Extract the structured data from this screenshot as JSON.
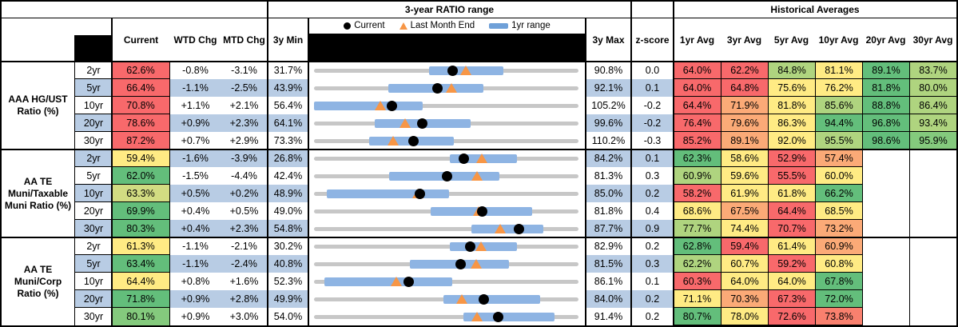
{
  "header": {
    "ratio_range_title": "3-year RATIO range",
    "historical_averages_title": "Historical Averages",
    "col_current": "Current",
    "col_wtd": "WTD Chg",
    "col_mtd": "MTD Chg",
    "col_3y_min": "3y Min",
    "col_3y_max": "3y Max",
    "col_zscore": "z-score",
    "avg_cols": [
      "1yr Avg",
      "3yr Avg",
      "5yr Avg",
      "10yr Avg",
      "20yr Avg",
      "30yr Avg"
    ],
    "legend": {
      "current": "Current",
      "last_month_end": "Last Month End",
      "one_yr_range": "1yr range"
    }
  },
  "colors": {
    "red": "#F8696B",
    "orange": "#FBAA77",
    "salmon": "#F9806E",
    "yellow": "#FFEB84",
    "yellowgreen": "#D2DC82",
    "lightgreen": "#AFD47F",
    "green": "#63BE7B",
    "green2": "#84CA7D",
    "stripe_blue": "#B8CCE4",
    "range_bar_blue": "#8EB4E3",
    "track_gray": "#C7C7C7",
    "marker_triangle_orange": "#F79646",
    "marker_dot_black": "#000000",
    "none": "#FFFFFF"
  },
  "groups": [
    {
      "label": "AAA HG/UST Ratio (%)",
      "rows": [
        {
          "tenor": "2yr",
          "current": "62.6%",
          "current_color": "red",
          "wtd": "-0.8%",
          "mtd": "-3.1%",
          "min": "31.7%",
          "max": "90.8%",
          "z": "0.0",
          "avgs": [
            {
              "v": "64.0%",
              "c": "red"
            },
            {
              "v": "62.2%",
              "c": "red"
            },
            {
              "v": "84.8%",
              "c": "lightgreen"
            },
            {
              "v": "81.1%",
              "c": "yellow"
            },
            {
              "v": "89.1%",
              "c": "green"
            },
            {
              "v": "83.7%",
              "c": "lightgreen"
            }
          ]
        },
        {
          "tenor": "5yr",
          "current": "66.4%",
          "current_color": "red",
          "wtd": "-1.1%",
          "mtd": "-2.5%",
          "min": "43.9%",
          "max": "92.1%",
          "z": "0.1",
          "avgs": [
            {
              "v": "64.0%",
              "c": "red"
            },
            {
              "v": "64.8%",
              "c": "red"
            },
            {
              "v": "75.6%",
              "c": "yellow"
            },
            {
              "v": "76.2%",
              "c": "yellow"
            },
            {
              "v": "81.8%",
              "c": "green"
            },
            {
              "v": "80.0%",
              "c": "lightgreen"
            }
          ]
        },
        {
          "tenor": "10yr",
          "current": "70.8%",
          "current_color": "red",
          "wtd": "+1.1%",
          "mtd": "+2.1%",
          "min": "56.4%",
          "max": "105.2%",
          "z": "-0.2",
          "avgs": [
            {
              "v": "64.4%",
              "c": "red"
            },
            {
              "v": "71.9%",
              "c": "orange"
            },
            {
              "v": "81.8%",
              "c": "yellow"
            },
            {
              "v": "85.6%",
              "c": "lightgreen"
            },
            {
              "v": "88.8%",
              "c": "green"
            },
            {
              "v": "86.4%",
              "c": "lightgreen"
            }
          ]
        },
        {
          "tenor": "20yr",
          "current": "78.6%",
          "current_color": "red",
          "wtd": "+0.9%",
          "mtd": "+2.3%",
          "min": "64.1%",
          "max": "99.6%",
          "z": "-0.2",
          "avgs": [
            {
              "v": "76.4%",
              "c": "red"
            },
            {
              "v": "79.6%",
              "c": "orange"
            },
            {
              "v": "86.3%",
              "c": "yellow"
            },
            {
              "v": "94.4%",
              "c": "green"
            },
            {
              "v": "96.8%",
              "c": "green"
            },
            {
              "v": "93.4%",
              "c": "lightgreen"
            }
          ]
        },
        {
          "tenor": "30yr",
          "current": "87.2%",
          "current_color": "red",
          "wtd": "+0.7%",
          "mtd": "+2.9%",
          "min": "73.3%",
          "max": "110.2%",
          "z": "-0.3",
          "avgs": [
            {
              "v": "85.2%",
              "c": "red"
            },
            {
              "v": "89.1%",
              "c": "orange"
            },
            {
              "v": "92.0%",
              "c": "yellow"
            },
            {
              "v": "95.5%",
              "c": "lightgreen"
            },
            {
              "v": "98.6%",
              "c": "green"
            },
            {
              "v": "95.9%",
              "c": "green2"
            }
          ]
        }
      ]
    },
    {
      "label": "AA TE Muni/Taxable Muni Ratio (%)",
      "rows": [
        {
          "tenor": "2yr",
          "current": "59.4%",
          "current_color": "yellow",
          "wtd": "-1.6%",
          "mtd": "-3.9%",
          "min": "26.8%",
          "max": "84.2%",
          "z": "0.1",
          "avgs": [
            {
              "v": "62.3%",
              "c": "green"
            },
            {
              "v": "58.6%",
              "c": "yellow"
            },
            {
              "v": "52.9%",
              "c": "red"
            },
            {
              "v": "57.4%",
              "c": "orange"
            },
            {
              "v": "",
              "c": "none"
            },
            {
              "v": "",
              "c": "none"
            }
          ]
        },
        {
          "tenor": "5yr",
          "current": "62.0%",
          "current_color": "green",
          "wtd": "-1.5%",
          "mtd": "-4.4%",
          "min": "42.4%",
          "max": "81.3%",
          "z": "0.3",
          "avgs": [
            {
              "v": "60.9%",
              "c": "lightgreen"
            },
            {
              "v": "59.6%",
              "c": "yellow"
            },
            {
              "v": "55.5%",
              "c": "red"
            },
            {
              "v": "60.0%",
              "c": "yellow"
            },
            {
              "v": "",
              "c": "none"
            },
            {
              "v": "",
              "c": "none"
            }
          ]
        },
        {
          "tenor": "10yr",
          "current": "63.3%",
          "current_color": "yellowgreen",
          "wtd": "+0.5%",
          "mtd": "+0.2%",
          "min": "48.9%",
          "max": "85.0%",
          "z": "0.2",
          "avgs": [
            {
              "v": "58.2%",
              "c": "red"
            },
            {
              "v": "61.9%",
              "c": "yellow"
            },
            {
              "v": "61.8%",
              "c": "yellow"
            },
            {
              "v": "66.2%",
              "c": "green"
            },
            {
              "v": "",
              "c": "none"
            },
            {
              "v": "",
              "c": "none"
            }
          ]
        },
        {
          "tenor": "20yr",
          "current": "69.9%",
          "current_color": "green",
          "wtd": "+0.4%",
          "mtd": "+0.5%",
          "min": "49.0%",
          "max": "81.8%",
          "z": "0.4",
          "avgs": [
            {
              "v": "68.6%",
              "c": "yellow"
            },
            {
              "v": "67.5%",
              "c": "orange"
            },
            {
              "v": "64.4%",
              "c": "red"
            },
            {
              "v": "68.5%",
              "c": "yellow"
            },
            {
              "v": "",
              "c": "none"
            },
            {
              "v": "",
              "c": "none"
            }
          ]
        },
        {
          "tenor": "30yr",
          "current": "80.3%",
          "current_color": "green",
          "wtd": "+0.4%",
          "mtd": "+2.3%",
          "min": "54.8%",
          "max": "87.7%",
          "z": "0.9",
          "avgs": [
            {
              "v": "77.7%",
              "c": "lightgreen"
            },
            {
              "v": "74.4%",
              "c": "yellow"
            },
            {
              "v": "70.7%",
              "c": "red"
            },
            {
              "v": "73.2%",
              "c": "orange"
            },
            {
              "v": "",
              "c": "none"
            },
            {
              "v": "",
              "c": "none"
            }
          ]
        }
      ]
    },
    {
      "label": "AA TE Muni/Corp Ratio (%)",
      "rows": [
        {
          "tenor": "2yr",
          "current": "61.3%",
          "current_color": "yellow",
          "wtd": "-1.1%",
          "mtd": "-2.1%",
          "min": "30.2%",
          "max": "82.9%",
          "z": "0.2",
          "avgs": [
            {
              "v": "62.8%",
              "c": "green"
            },
            {
              "v": "59.4%",
              "c": "red"
            },
            {
              "v": "61.4%",
              "c": "yellow"
            },
            {
              "v": "60.9%",
              "c": "orange"
            },
            {
              "v": "",
              "c": "none"
            },
            {
              "v": "",
              "c": "none"
            }
          ]
        },
        {
          "tenor": "5yr",
          "current": "63.4%",
          "current_color": "green",
          "wtd": "-1.1%",
          "mtd": "-2.4%",
          "min": "40.8%",
          "max": "81.5%",
          "z": "0.3",
          "avgs": [
            {
              "v": "62.2%",
              "c": "lightgreen"
            },
            {
              "v": "60.7%",
              "c": "yellow"
            },
            {
              "v": "59.2%",
              "c": "red"
            },
            {
              "v": "60.8%",
              "c": "yellow"
            },
            {
              "v": "",
              "c": "none"
            },
            {
              "v": "",
              "c": "none"
            }
          ]
        },
        {
          "tenor": "10yr",
          "current": "64.4%",
          "current_color": "yellow",
          "wtd": "+0.8%",
          "mtd": "+1.6%",
          "min": "52.3%",
          "max": "86.1%",
          "z": "0.1",
          "avgs": [
            {
              "v": "60.3%",
              "c": "red"
            },
            {
              "v": "64.0%",
              "c": "yellow"
            },
            {
              "v": "64.0%",
              "c": "yellow"
            },
            {
              "v": "67.8%",
              "c": "green"
            },
            {
              "v": "",
              "c": "none"
            },
            {
              "v": "",
              "c": "none"
            }
          ]
        },
        {
          "tenor": "20yr",
          "current": "71.8%",
          "current_color": "green",
          "wtd": "+0.9%",
          "mtd": "+2.8%",
          "min": "49.9%",
          "max": "84.0%",
          "z": "0.2",
          "avgs": [
            {
              "v": "71.1%",
              "c": "yellow"
            },
            {
              "v": "70.3%",
              "c": "orange"
            },
            {
              "v": "67.3%",
              "c": "red"
            },
            {
              "v": "72.0%",
              "c": "green"
            },
            {
              "v": "",
              "c": "none"
            },
            {
              "v": "",
              "c": "none"
            }
          ]
        },
        {
          "tenor": "30yr",
          "current": "80.1%",
          "current_color": "green2",
          "wtd": "+0.9%",
          "mtd": "+3.0%",
          "min": "54.0%",
          "max": "91.4%",
          "z": "0.2",
          "avgs": [
            {
              "v": "80.7%",
              "c": "green"
            },
            {
              "v": "78.0%",
              "c": "yellow"
            },
            {
              "v": "72.6%",
              "c": "red"
            },
            {
              "v": "73.8%",
              "c": "salmon"
            },
            {
              "v": "",
              "c": "none"
            },
            {
              "v": "",
              "c": "none"
            }
          ]
        }
      ]
    }
  ],
  "chart_data": {
    "type": "scatter",
    "subtype": "dot-range-plot",
    "title": "3-year RATIO range",
    "x_axis": "ratio (%), scaled per row from 3y Min to 3y Max",
    "legend_entries": [
      "Current",
      "Last Month End",
      "1yr range"
    ],
    "rows": [
      {
        "group": "AAA HG/UST Ratio (%)",
        "tenor": "2yr",
        "min": 31.7,
        "max": 90.8,
        "low": 57.5,
        "high": 74.1,
        "current": 62.6,
        "last_month_end": 65.7
      },
      {
        "group": "AAA HG/UST Ratio (%)",
        "tenor": "5yr",
        "min": 43.9,
        "max": 92.1,
        "low": 57.5,
        "high": 74.8,
        "current": 66.4,
        "last_month_end": 68.9
      },
      {
        "group": "AAA HG/UST Ratio (%)",
        "tenor": "10yr",
        "min": 56.4,
        "max": 105.2,
        "low": 56.4,
        "high": 76.4,
        "current": 70.8,
        "last_month_end": 68.7
      },
      {
        "group": "AAA HG/UST Ratio (%)",
        "tenor": "20yr",
        "min": 64.1,
        "max": 99.6,
        "low": 72.2,
        "high": 85.1,
        "current": 78.6,
        "last_month_end": 76.3
      },
      {
        "group": "AAA HG/UST Ratio (%)",
        "tenor": "30yr",
        "min": 73.3,
        "max": 110.2,
        "low": 81.0,
        "high": 92.8,
        "current": 87.2,
        "last_month_end": 84.3
      },
      {
        "group": "AA TE Muni/Taxable Muni Ratio (%)",
        "tenor": "2yr",
        "min": 26.8,
        "max": 84.2,
        "low": 56.3,
        "high": 70.8,
        "current": 59.4,
        "last_month_end": 63.3
      },
      {
        "group": "AA TE Muni/Taxable Muni Ratio (%)",
        "tenor": "5yr",
        "min": 42.4,
        "max": 81.3,
        "low": 53.5,
        "high": 69.7,
        "current": 62.0,
        "last_month_end": 66.4
      },
      {
        "group": "AA TE Muni/Taxable Muni Ratio (%)",
        "tenor": "10yr",
        "min": 48.9,
        "max": 85.0,
        "low": 50.6,
        "high": 67.3,
        "current": 63.3,
        "last_month_end": 63.1
      },
      {
        "group": "AA TE Muni/Taxable Muni Ratio (%)",
        "tenor": "20yr",
        "min": 49.0,
        "max": 81.8,
        "low": 63.5,
        "high": 76.1,
        "current": 69.9,
        "last_month_end": 69.4
      },
      {
        "group": "AA TE Muni/Taxable Muni Ratio (%)",
        "tenor": "30yr",
        "min": 54.8,
        "max": 87.7,
        "low": 74.4,
        "high": 83.3,
        "current": 80.3,
        "last_month_end": 78.0
      },
      {
        "group": "AA TE Muni/Corp Ratio (%)",
        "tenor": "2yr",
        "min": 30.2,
        "max": 82.9,
        "low": 57.3,
        "high": 70.7,
        "current": 61.3,
        "last_month_end": 63.4
      },
      {
        "group": "AA TE Muni/Corp Ratio (%)",
        "tenor": "5yr",
        "min": 40.8,
        "max": 81.5,
        "low": 55.6,
        "high": 70.8,
        "current": 63.4,
        "last_month_end": 65.8
      },
      {
        "group": "AA TE Muni/Corp Ratio (%)",
        "tenor": "10yr",
        "min": 52.3,
        "max": 86.1,
        "low": 53.6,
        "high": 70.0,
        "current": 64.4,
        "last_month_end": 62.8
      },
      {
        "group": "AA TE Muni/Corp Ratio (%)",
        "tenor": "20yr",
        "min": 49.9,
        "max": 84.0,
        "low": 66.6,
        "high": 79.1,
        "current": 71.8,
        "last_month_end": 69.0
      },
      {
        "group": "AA TE Muni/Corp Ratio (%)",
        "tenor": "30yr",
        "min": 54.0,
        "max": 91.4,
        "low": 75.1,
        "high": 88.0,
        "current": 80.1,
        "last_month_end": 77.1
      }
    ]
  }
}
